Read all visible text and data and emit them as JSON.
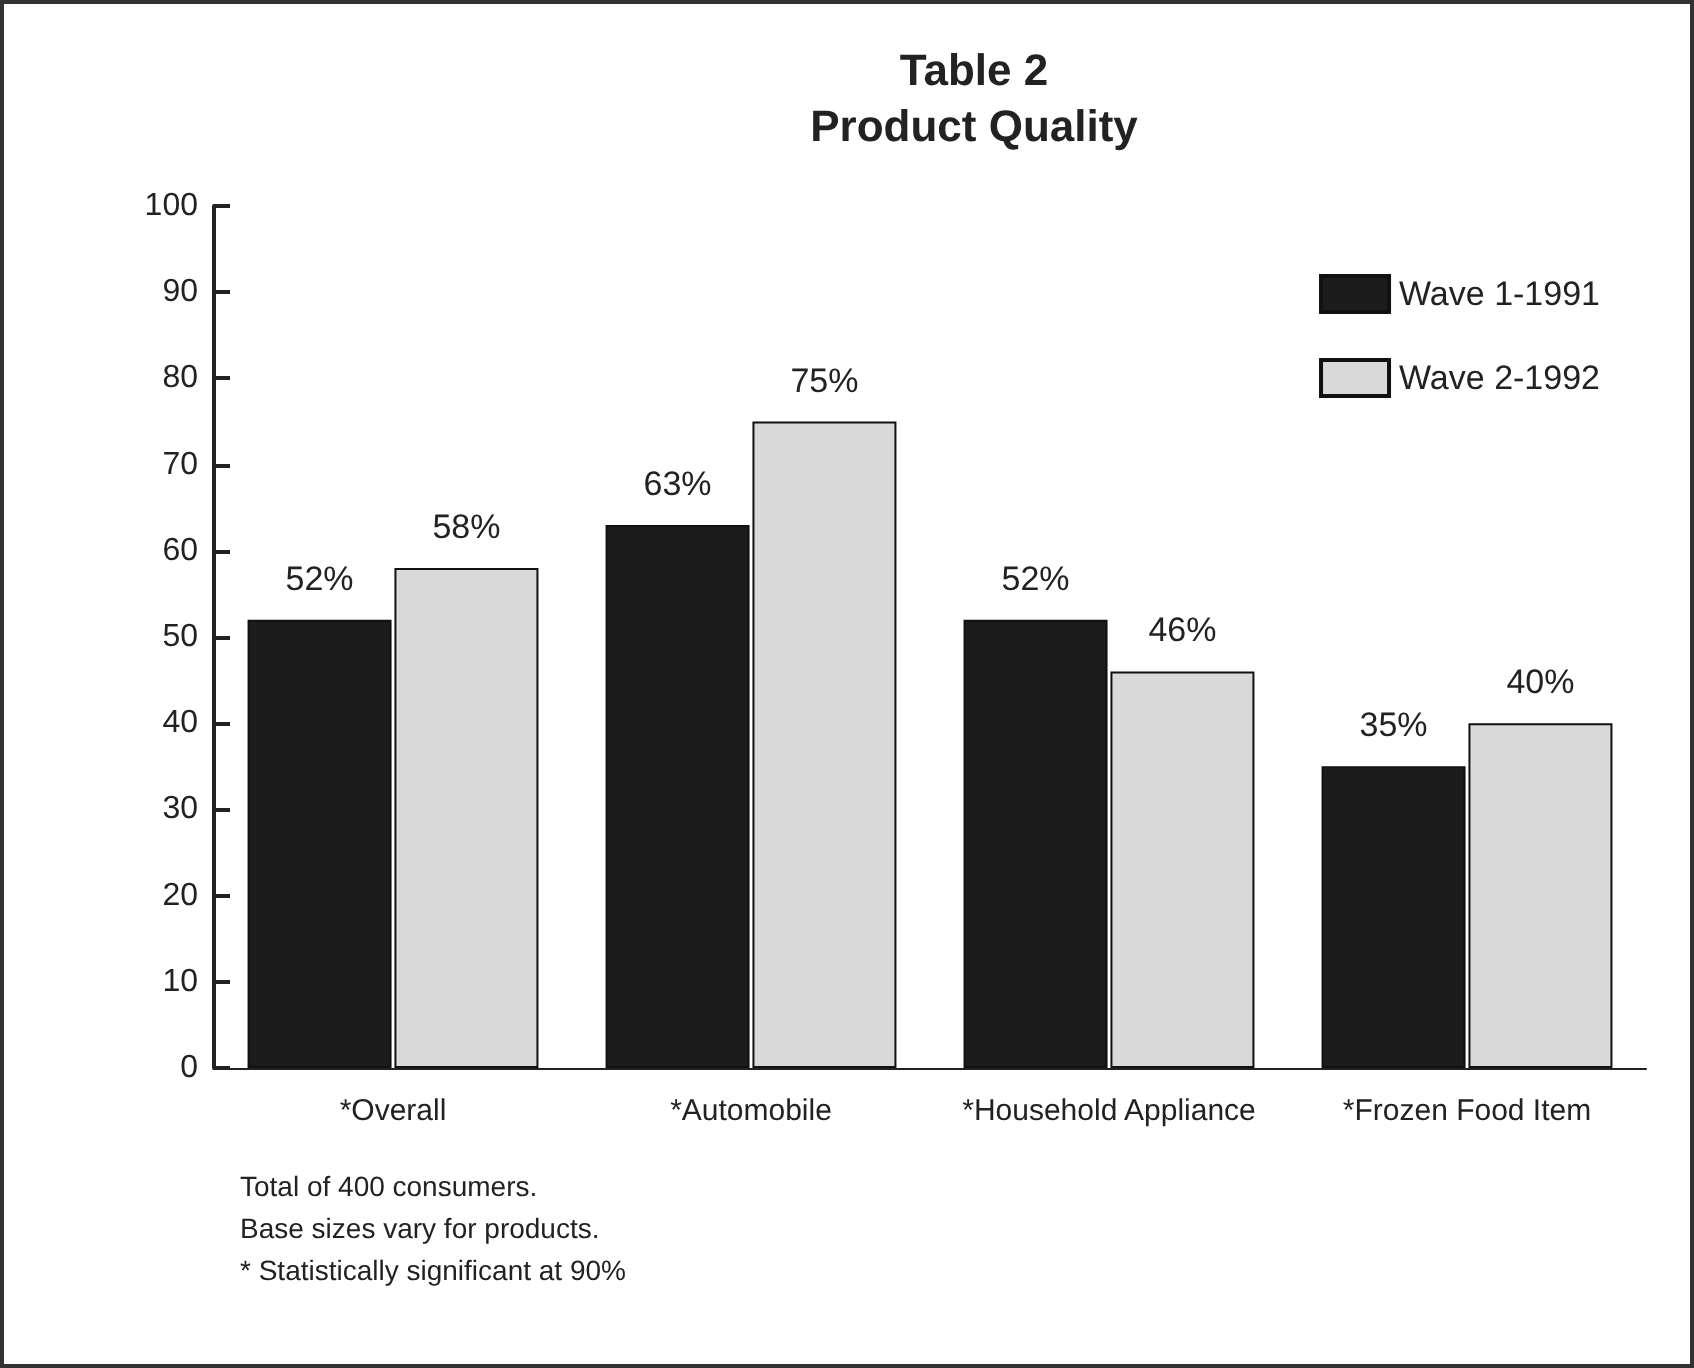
{
  "chart_data": {
    "type": "bar",
    "title": "Table 2\nProduct Quality",
    "categories": [
      "*Overall",
      "*Automobile",
      "*Household Appliance",
      "*Frozen Food Item"
    ],
    "series": [
      {
        "name": "Wave 1-1991",
        "color": "#1c1c1c",
        "values": [
          52,
          63,
          52,
          35
        ],
        "value_labels": [
          "52%",
          "63%",
          "52%",
          "35%"
        ]
      },
      {
        "name": "Wave 2-1992",
        "color": "#d9d9d9",
        "values": [
          58,
          75,
          46,
          40
        ],
        "value_labels": [
          "58%",
          "75%",
          "46%",
          "40%"
        ]
      }
    ],
    "ylim": [
      0,
      100
    ],
    "yticks": [
      0,
      10,
      20,
      30,
      40,
      50,
      60,
      70,
      80,
      90,
      100
    ],
    "grid": false,
    "legend": "top right",
    "annotations": [
      "Total of 400 consumers.",
      "Base sizes vary for products.",
      "* Statistically significant at 90%"
    ]
  }
}
